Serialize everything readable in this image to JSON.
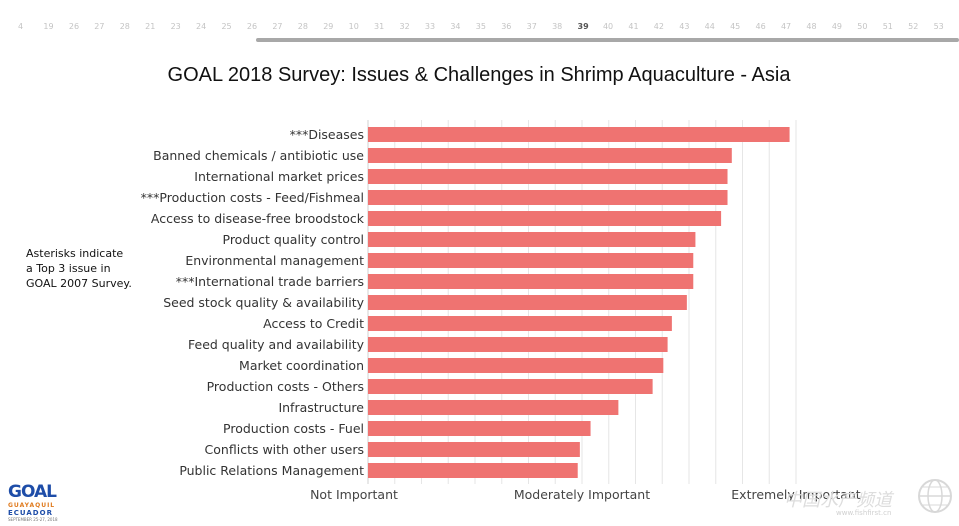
{
  "toolbar": {
    "ruler_ticks": [
      "4",
      "19",
      "26",
      "27",
      "28",
      "21",
      "23",
      "24",
      "25",
      "26",
      "27",
      "28",
      "29",
      "10",
      "31",
      "32",
      "33",
      "34",
      "35",
      "36",
      "37",
      "38",
      "39",
      "40",
      "41",
      "42",
      "43",
      "44",
      "45",
      "46",
      "47",
      "48",
      "49",
      "50",
      "51",
      "52",
      "53"
    ],
    "active_tick": "39"
  },
  "annotation": {
    "lines": [
      "Asterisks indicate",
      "a Top 3 issue in",
      "GOAL 2007 Survey."
    ]
  },
  "logo": {
    "text": "GOAL",
    "sub1": "GUAYAQUIL",
    "sub2": "ECUADOR",
    "sub3": "SEPTEMBER 25-27, 2018"
  },
  "watermark": {
    "text": "中国水产频道",
    "url": "www.fishfirst.cn"
  },
  "chart_data": {
    "type": "bar",
    "orientation": "horizontal",
    "title": "GOAL 2018 Survey: Issues & Challenges in Shrimp Aquaculture - Asia",
    "xlabel": "",
    "ylabel": "",
    "categories": [
      "***Diseases",
      "Banned chemicals / antibiotic use",
      "International market prices",
      "***Production costs - Feed/Fishmeal",
      "Access to disease-free broodstock",
      "Product quality control",
      "Environmental management",
      "***International trade barriers",
      "Seed stock quality & availability",
      "Access to Credit",
      "Feed quality and availability",
      "Market coordination",
      "Production costs - Others",
      "Infrastructure",
      "Production costs - Fuel",
      "Conflicts with other users",
      "Public Relations Management"
    ],
    "values": [
      4.97,
      4.7,
      4.68,
      4.68,
      4.65,
      4.53,
      4.52,
      4.52,
      4.49,
      4.42,
      4.4,
      4.38,
      4.33,
      4.17,
      4.04,
      3.99,
      3.98
    ],
    "xlim": [
      3.0,
      5.0
    ],
    "xticks": [
      {
        "value": 3.0,
        "label": "Not Important"
      },
      {
        "value": 4.0,
        "label": "Moderately Important"
      },
      {
        "value": 5.0,
        "label": "Extremely Important"
      }
    ],
    "grid": true,
    "bar_color": "#ef7371",
    "grid_color": "#e6e6e6"
  }
}
